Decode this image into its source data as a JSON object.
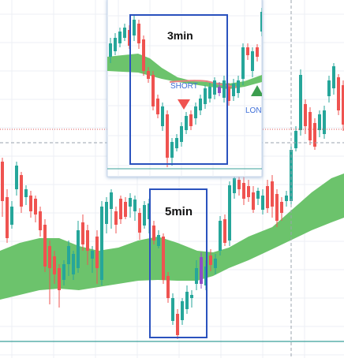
{
  "chart": {
    "label_5min": "5min",
    "label_3min": "3min",
    "short_label": "SHORT",
    "long_label": "LONG"
  },
  "colors": {
    "bull": "#26a69a",
    "bear": "#ef5350",
    "band": "#6cc36c",
    "box": "#2a52be",
    "short_marker": "#ef5350",
    "long_marker": "#3c9e4e",
    "grid": "#eceff4",
    "baseline": "#3aa09a"
  },
  "icons": {
    "short": "triangle-down-icon",
    "long": "triangle-up-icon"
  }
}
